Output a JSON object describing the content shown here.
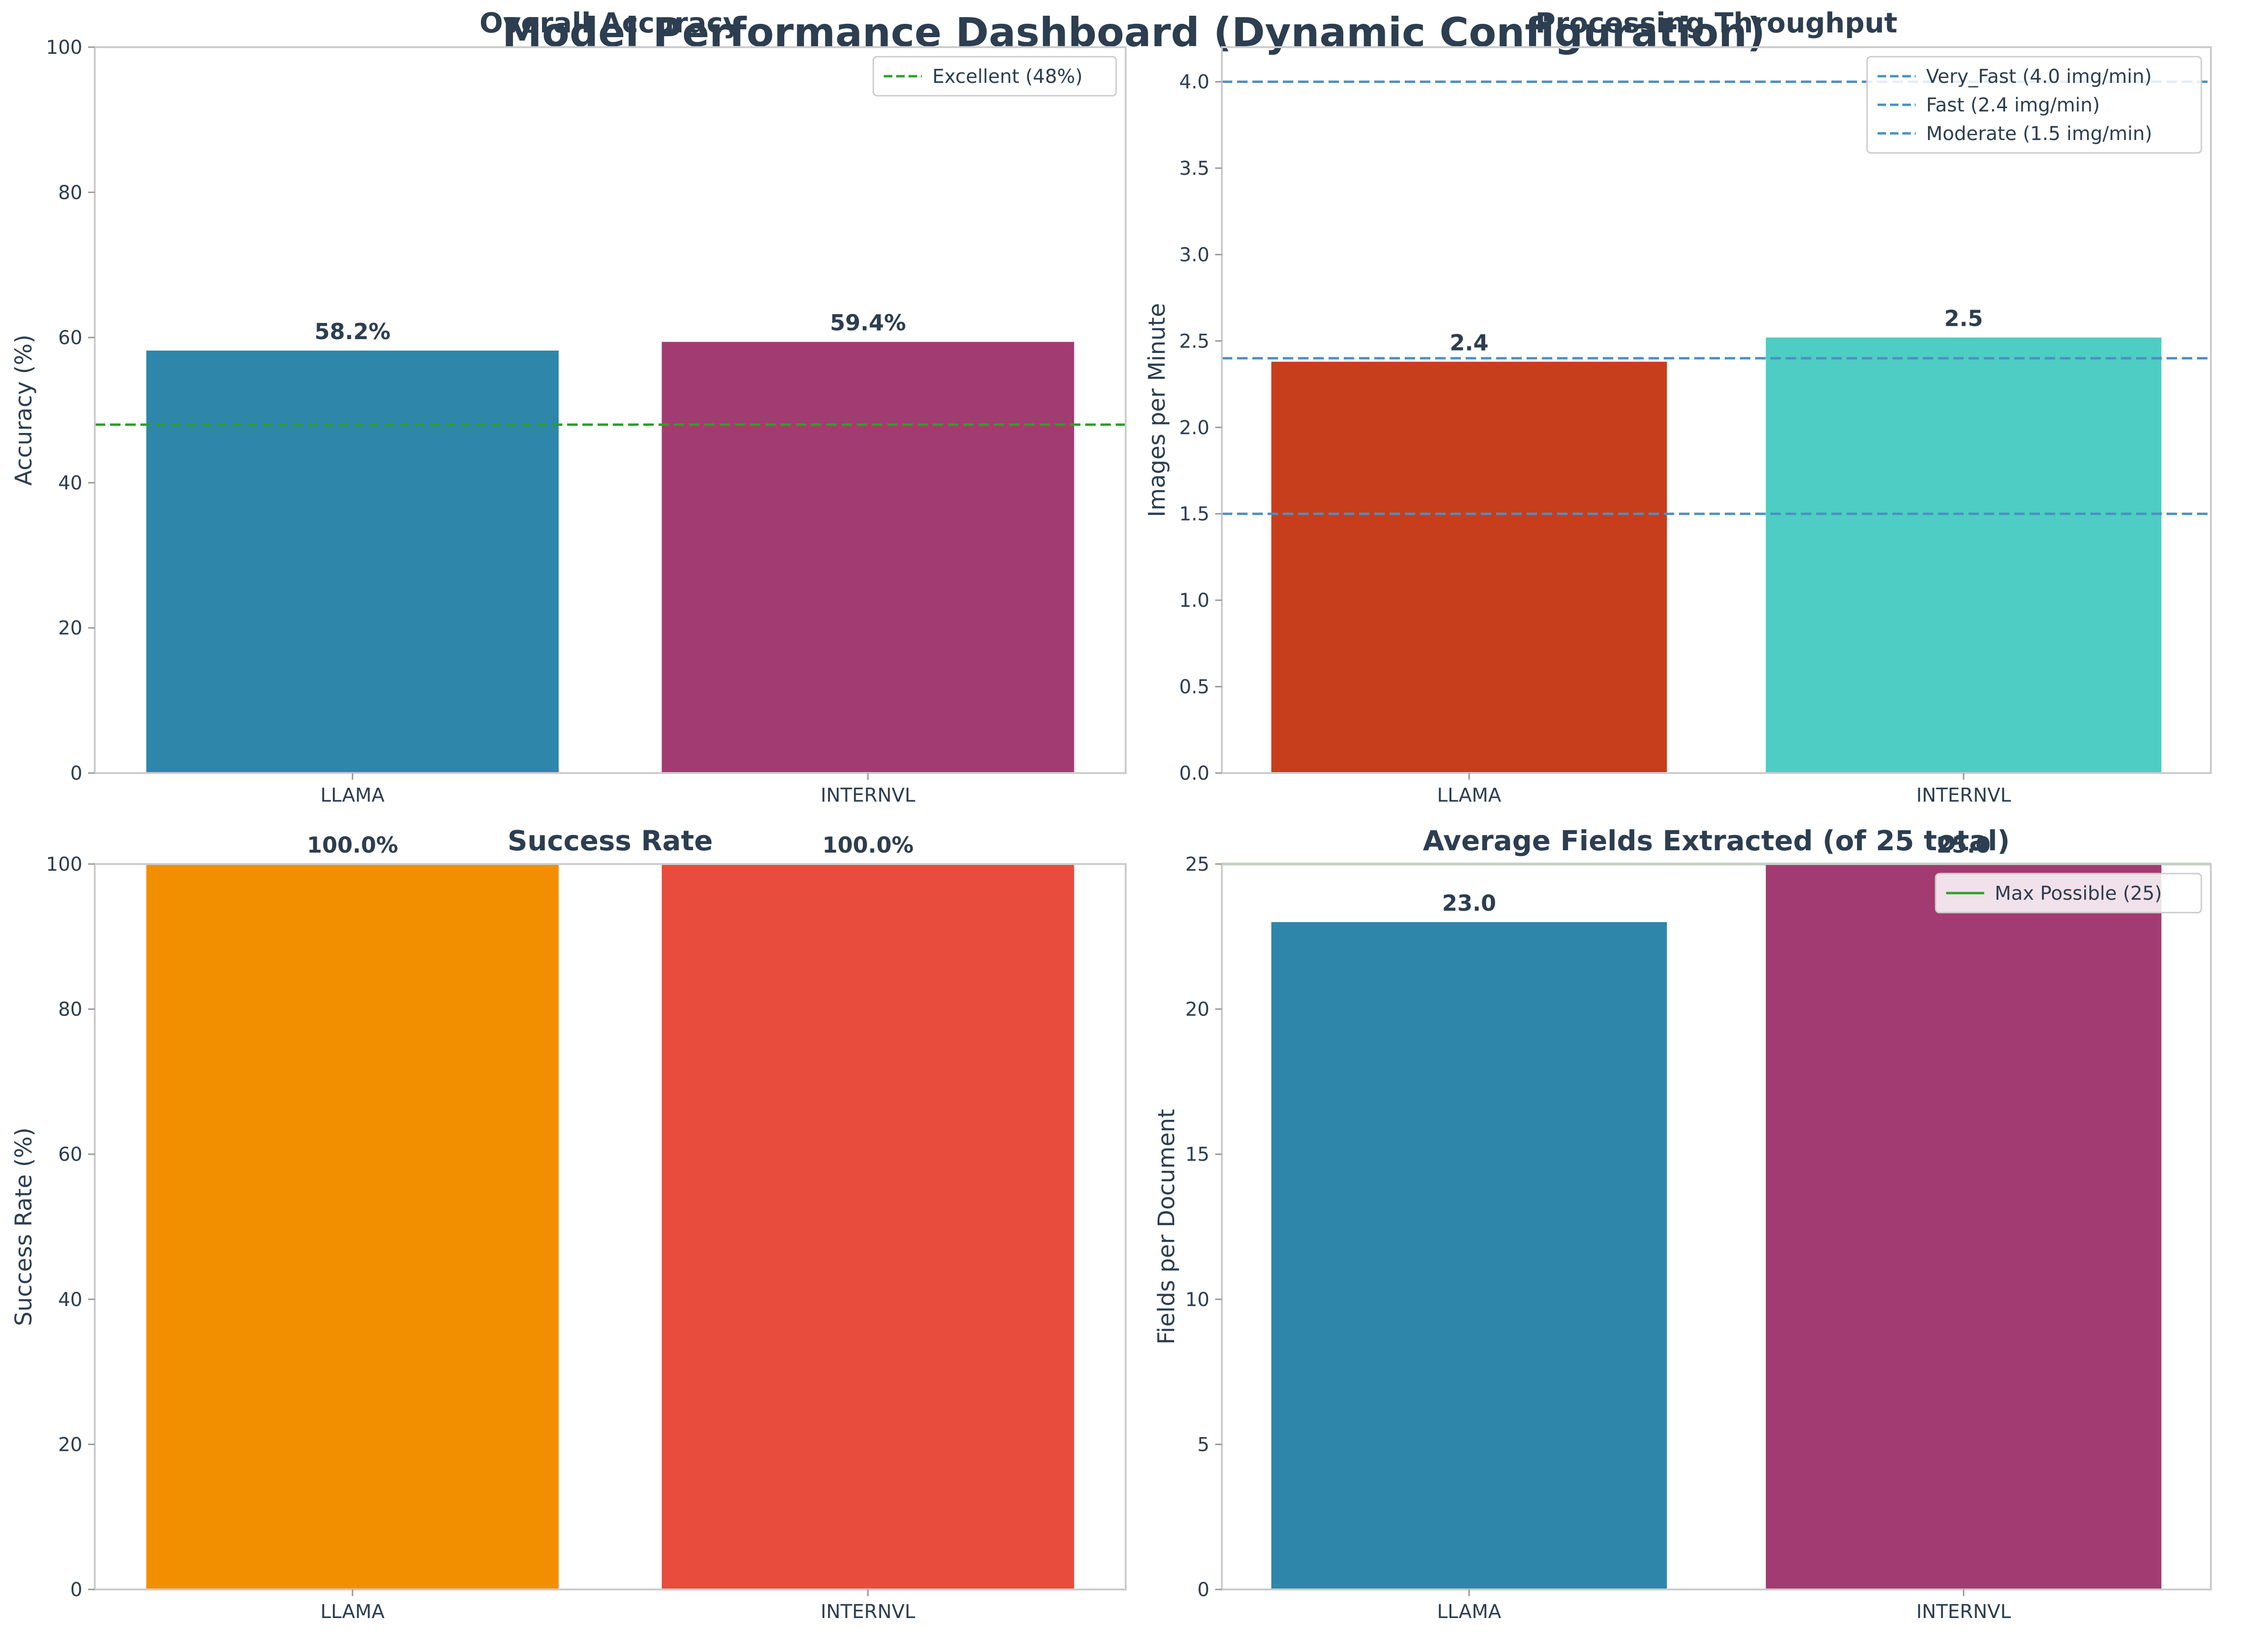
{
  "title": "Model Performance Dashboard (Dynamic Configuration)",
  "chart_data": [
    {
      "type": "bar",
      "title": "Overall Accuracy",
      "ylabel": "Accuracy (%)",
      "categories": [
        "LLAMA",
        "INTERNVL"
      ],
      "values": [
        58.2,
        59.4
      ],
      "value_labels": [
        "58.2%",
        "59.4%"
      ],
      "colors": [
        "#2e86ab",
        "#a23b72"
      ],
      "ylim": [
        0,
        100
      ],
      "yticks": [
        0,
        20,
        40,
        60,
        80,
        100
      ],
      "reference_lines": [
        {
          "value": 48,
          "label": "Excellent (48%)",
          "color": "#2ca02c",
          "style": "dashed"
        }
      ],
      "legend": "top-right",
      "grid": false
    },
    {
      "type": "bar",
      "title": "Processing Throughput",
      "ylabel": "Images per Minute",
      "categories": [
        "LLAMA",
        "INTERNVL"
      ],
      "values": [
        2.38,
        2.52
      ],
      "value_labels": [
        "2.4",
        "2.5"
      ],
      "colors": [
        "#c73e1d",
        "#4ecdc4"
      ],
      "ylim": [
        0,
        4.2
      ],
      "yticks": [
        0.0,
        0.5,
        1.0,
        1.5,
        2.0,
        2.5,
        3.0,
        3.5,
        4.0
      ],
      "reference_lines": [
        {
          "value": 4.0,
          "label": "Very_Fast (4.0 img/min)",
          "color": "#4a90c2",
          "style": "dashed"
        },
        {
          "value": 2.4,
          "label": "Fast (2.4 img/min)",
          "color": "#4a90c2",
          "style": "dashed"
        },
        {
          "value": 1.5,
          "label": "Moderate (1.5 img/min)",
          "color": "#4a90c2",
          "style": "dashed"
        }
      ],
      "legend": "top-right",
      "grid": false
    },
    {
      "type": "bar",
      "title": "Success Rate",
      "ylabel": "Success Rate (%)",
      "categories": [
        "LLAMA",
        "INTERNVL"
      ],
      "values": [
        100.0,
        100.0
      ],
      "value_labels": [
        "100.0%",
        "100.0%"
      ],
      "colors": [
        "#f18f01",
        "#e74c3c"
      ],
      "ylim": [
        0,
        100
      ],
      "yticks": [
        0,
        20,
        40,
        60,
        80,
        100
      ],
      "reference_lines": [],
      "grid": false
    },
    {
      "type": "bar",
      "title": "Average Fields Extracted (of 25 total)",
      "ylabel": "Fields per Document",
      "categories": [
        "LLAMA",
        "INTERNVL"
      ],
      "values": [
        23.0,
        25.0
      ],
      "value_labels": [
        "23.0",
        "25.0"
      ],
      "colors": [
        "#2e86ab",
        "#a23b72"
      ],
      "ylim": [
        0,
        25
      ],
      "yticks": [
        0,
        5,
        10,
        15,
        20,
        25
      ],
      "reference_lines": [
        {
          "value": 25,
          "label": "Max Possible (25)",
          "color": "#2ca02c",
          "style": "solid"
        }
      ],
      "legend": "top-right",
      "grid": false
    }
  ]
}
